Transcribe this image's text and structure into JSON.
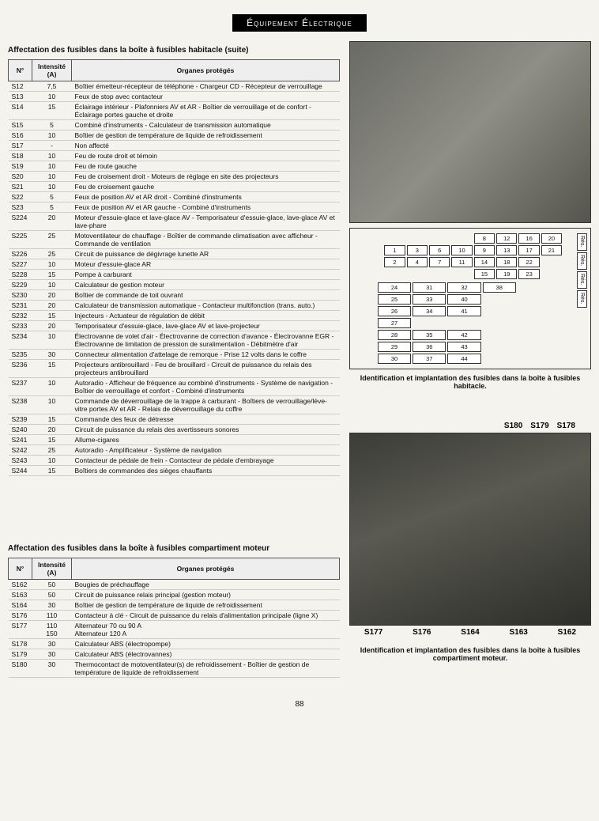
{
  "banner": "Équipement Électrique",
  "table1_title": "Affectation des fusibles dans la boîte à fusibles habitacle (suite)",
  "table2_title": "Affectation des fusibles dans la boîte à fusibles compartiment moteur",
  "headers": {
    "no": "N°",
    "intensity": "Intensité (A)",
    "desc": "Organes protégés"
  },
  "table1_rows": [
    {
      "no": "S12",
      "int": "7,5",
      "desc": "Boîtier émetteur-récepteur de téléphone - Chargeur CD - Récepteur de verrouillage"
    },
    {
      "no": "S13",
      "int": "10",
      "desc": "Feux de stop avec contacteur"
    },
    {
      "no": "S14",
      "int": "15",
      "desc": "Éclairage intérieur - Plafonniers AV et AR - Boîtier de verrouillage et de confort - Éclairage portes gauche et droite"
    },
    {
      "no": "S15",
      "int": "5",
      "desc": "Combiné d'instruments - Calculateur de transmission automatique"
    },
    {
      "no": "S16",
      "int": "10",
      "desc": "Boîtier de gestion de température de liquide de refroidissement"
    },
    {
      "no": "S17",
      "int": "-",
      "desc": "Non affecté"
    },
    {
      "no": "S18",
      "int": "10",
      "desc": "Feu de route droit et témoin"
    },
    {
      "no": "S19",
      "int": "10",
      "desc": "Feu de route gauche"
    },
    {
      "no": "S20",
      "int": "10",
      "desc": "Feu de croisement droit - Moteurs de réglage en site des projecteurs"
    },
    {
      "no": "S21",
      "int": "10",
      "desc": "Feu de croisement gauche"
    },
    {
      "no": "S22",
      "int": "5",
      "desc": "Feux de position AV et AR droit - Combiné d'instruments"
    },
    {
      "no": "S23",
      "int": "5",
      "desc": "Feux de position AV et AR gauche - Combiné d'instruments"
    },
    {
      "no": "S224",
      "int": "20",
      "desc": "Moteur d'essuie-glace et lave-glace AV - Temporisateur d'essuie-glace, lave-glace AV et lave-phare"
    },
    {
      "no": "S225",
      "int": "25",
      "desc": "Motoventilateur de chauffage - Boîtier de commande climatisation avec afficheur - Commande de ventilation"
    },
    {
      "no": "S226",
      "int": "25",
      "desc": "Circuit de puissance de dégivrage lunette AR"
    },
    {
      "no": "S227",
      "int": "10",
      "desc": "Moteur d'essuie-glace AR"
    },
    {
      "no": "S228",
      "int": "15",
      "desc": "Pompe à carburant"
    },
    {
      "no": "S229",
      "int": "10",
      "desc": "Calculateur de gestion moteur"
    },
    {
      "no": "S230",
      "int": "20",
      "desc": "Boîtier de commande de toit ouvrant"
    },
    {
      "no": "S231",
      "int": "20",
      "desc": "Calculateur de transmission automatique - Contacteur multifonction (trans. auto.)"
    },
    {
      "no": "S232",
      "int": "15",
      "desc": "Injecteurs - Actuateur de régulation de débit"
    },
    {
      "no": "S233",
      "int": "20",
      "desc": "Temporisateur d'essuie-glace, lave-glace AV et lave-projecteur"
    },
    {
      "no": "S234",
      "int": "10",
      "desc": "Électrovanne de volet d'air - Électrovanne de correction d'avance - Électrovanne EGR - Électrovanne de limitation de pression de suralimentation - Débitmètre d'air"
    },
    {
      "no": "S235",
      "int": "30",
      "desc": "Connecteur alimentation d'attelage de remorque - Prise 12 volts dans le coffre"
    },
    {
      "no": "S236",
      "int": "15",
      "desc": "Projecteurs antibrouillard - Feu de brouillard - Circuit de puissance du relais des projecteurs antibrouillard"
    },
    {
      "no": "S237",
      "int": "10",
      "desc": "Autoradio - Afficheur de fréquence au combiné d'instruments - Système de navigation - Boîtier de verrouillage et confort - Combiné d'instruments"
    },
    {
      "no": "S238",
      "int": "10",
      "desc": "Commande de déverrouillage de la trappe à carburant - Boîtiers de verrouillage/lève-vitre portes AV et AR - Relais de déverrouillage du coffre"
    },
    {
      "no": "S239",
      "int": "15",
      "desc": "Commande des feux de détresse"
    },
    {
      "no": "S240",
      "int": "20",
      "desc": "Circuit de puissance du relais des avertisseurs sonores"
    },
    {
      "no": "S241",
      "int": "15",
      "desc": "Allume-cigares"
    },
    {
      "no": "S242",
      "int": "25",
      "desc": "Autoradio - Amplificateur - Système de navigation"
    },
    {
      "no": "S243",
      "int": "10",
      "desc": "Contacteur de pédale de frein - Contacteur de pédale d'embrayage"
    },
    {
      "no": "S244",
      "int": "15",
      "desc": "Boîtiers de commandes des sièges chauffants"
    }
  ],
  "table2_rows": [
    {
      "no": "S162",
      "int": "50",
      "desc": "Bougies de préchauffage"
    },
    {
      "no": "S163",
      "int": "50",
      "desc": "Circuit de puissance relais principal (gestion moteur)"
    },
    {
      "no": "S164",
      "int": "30",
      "desc": "Boîtier de gestion de température de liquide de refroidissement"
    },
    {
      "no": "S176",
      "int": "110",
      "desc": "Contacteur à clé - Circuit de puissance du relais d'alimentation principale (ligne X)"
    },
    {
      "no": "S177",
      "int": "110\n150",
      "desc": "Alternateur 70 ou 90 A\nAlternateur 120 A"
    },
    {
      "no": "S178",
      "int": "30",
      "desc": "Calculateur ABS (électropompe)"
    },
    {
      "no": "S179",
      "int": "30",
      "desc": "Calculateur ABS (électrovannes)"
    },
    {
      "no": "S180",
      "int": "30",
      "desc": "Thermocontact de motoventilateur(s) de refroidissement - Boîtier de gestion de température de liquide de refroidissement"
    }
  ],
  "caption1": "Identification et implantation des fusibles dans la boîte à fusibles habitacle.",
  "caption2": "Identification et implantation des fusibles dans la boîte à fusibles compartiment moteur.",
  "diag_top": [
    [
      "",
      "",
      "",
      "",
      "8",
      "12",
      "16",
      "20"
    ],
    [
      "1",
      "3",
      "6",
      "10",
      "9",
      "13",
      "17",
      "21"
    ],
    [
      "2",
      "4",
      "7",
      "11",
      "14",
      "18",
      "22",
      ""
    ],
    [
      "",
      "",
      "",
      "",
      "15",
      "19",
      "23",
      ""
    ]
  ],
  "diag_bottom": [
    [
      "24",
      "31",
      "32",
      "38",
      ""
    ],
    [
      "25",
      "33",
      "40",
      "",
      ""
    ],
    [
      "26",
      "34",
      "41",
      "",
      ""
    ],
    [
      "27",
      "",
      "",
      "",
      ""
    ],
    [
      "28",
      "35",
      "42",
      "",
      ""
    ],
    [
      "29",
      "36",
      "43",
      "",
      ""
    ],
    [
      "30",
      "37",
      "44",
      "",
      ""
    ]
  ],
  "diag_res": [
    "Rés.",
    "Rés.",
    "Rés.",
    "Rés."
  ],
  "engine_labels_top": [
    "S180",
    "S179",
    "S178"
  ],
  "engine_labels_bottom": [
    "S177",
    "S176",
    "S164",
    "S163",
    "S162"
  ],
  "page_number": "88",
  "colors": {
    "bg": "#f5f3ee",
    "ink": "#111"
  }
}
